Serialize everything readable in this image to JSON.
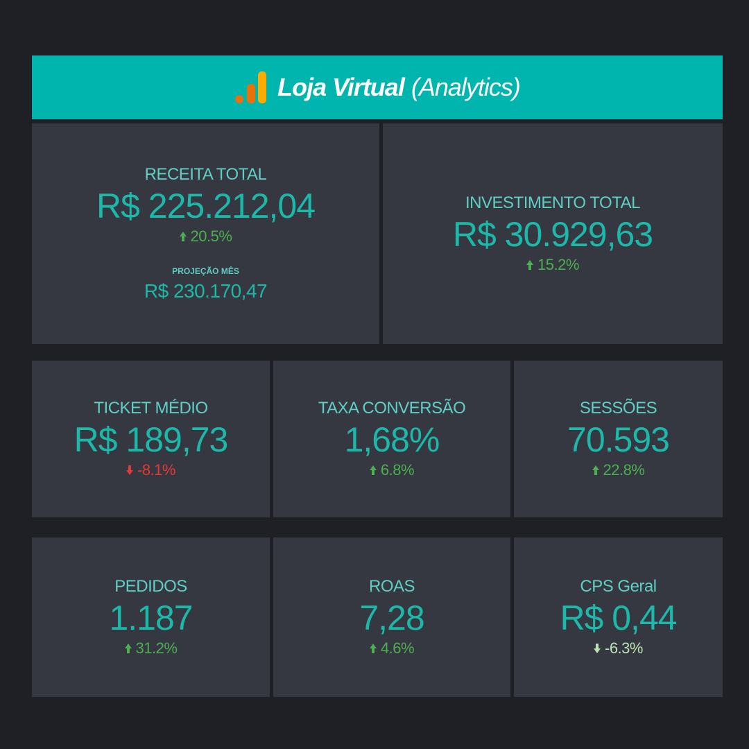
{
  "header": {
    "title": "Loja Virtual",
    "subtitle": "(Analytics)"
  },
  "cards": [
    {
      "label": "RECEITA TOTAL",
      "value": "R$ 225.212,04",
      "change": "20.5%",
      "direction": "up",
      "change_color": "#4caf50",
      "projection_label": "PROJEÇÃO MÊS",
      "projection_value": "R$ 230.170,47"
    },
    {
      "label": "INVESTIMENTO TOTAL",
      "value": "R$ 30.929,63",
      "change": "15.2%",
      "direction": "up",
      "change_color": "#4caf50"
    },
    {
      "label": "TICKET MÉDIO",
      "value": "R$ 189,73",
      "change": "-8.1%",
      "direction": "down",
      "change_color": "#e53935"
    },
    {
      "label": "TAXA CONVERSÃO",
      "value": "1,68%",
      "change": "6.8%",
      "direction": "up",
      "change_color": "#4caf50"
    },
    {
      "label": "SESSÕES",
      "value": "70.593",
      "change": "22.8%",
      "direction": "up",
      "change_color": "#4caf50"
    },
    {
      "label": "PEDIDOS",
      "value": "1.187",
      "change": "31.2%",
      "direction": "up",
      "change_color": "#4caf50"
    },
    {
      "label": "ROAS",
      "value": "7,28",
      "change": "4.6%",
      "direction": "up",
      "change_color": "#4caf50"
    },
    {
      "label": "CPS Geral",
      "value": "R$ 0,44",
      "change": "-6.3%",
      "direction": "down",
      "change_color": "#b9e3b0"
    }
  ]
}
